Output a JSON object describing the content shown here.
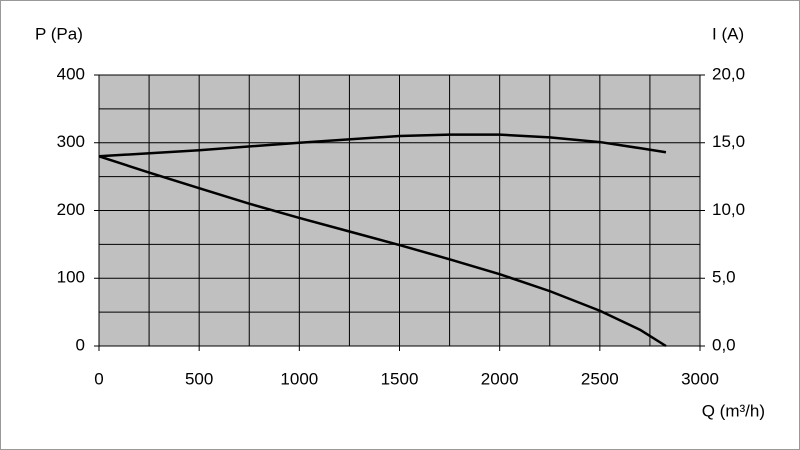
{
  "chart_data": {
    "type": "line",
    "ylabel": "P (Pa)",
    "y2label": "I (A)",
    "xlabel": "Q (m³/h)",
    "xlim": [
      0,
      3000
    ],
    "xticks": [
      0,
      500,
      1000,
      1500,
      2000,
      2500,
      3000
    ],
    "xminorticks": [
      250,
      750,
      1250,
      1750,
      2250,
      2750
    ],
    "ylim": [
      0,
      400
    ],
    "yticks": [
      0,
      100,
      200,
      300,
      400
    ],
    "yminorticks": [
      50,
      150,
      250,
      350
    ],
    "y2lim": [
      0,
      20
    ],
    "y2ticks": [
      {
        "value": 0,
        "label": "0,0"
      },
      {
        "value": 5,
        "label": "5,0"
      },
      {
        "value": 10,
        "label": "10,0"
      },
      {
        "value": 15,
        "label": "15,0"
      },
      {
        "value": 20,
        "label": "20,0"
      }
    ],
    "grid": true,
    "plot_background": "#c0c0c0",
    "series": [
      {
        "color": "#000000",
        "x": [
          0,
          250,
          500,
          750,
          1000,
          1250,
          1500,
          1750,
          2000,
          2250,
          2500,
          2700,
          2830
        ],
        "values": [
          280,
          256,
          233,
          210,
          189,
          169,
          149,
          128,
          106,
          81,
          52,
          24,
          0
        ]
      },
      {
        "color": "#000000",
        "axis": "y2",
        "x": [
          0,
          500,
          1000,
          1500,
          1750,
          2000,
          2250,
          2500,
          2700,
          2830
        ],
        "values": [
          14.0,
          14.45,
          15.0,
          15.5,
          15.6,
          15.6,
          15.4,
          15.05,
          14.6,
          14.3
        ]
      }
    ]
  }
}
